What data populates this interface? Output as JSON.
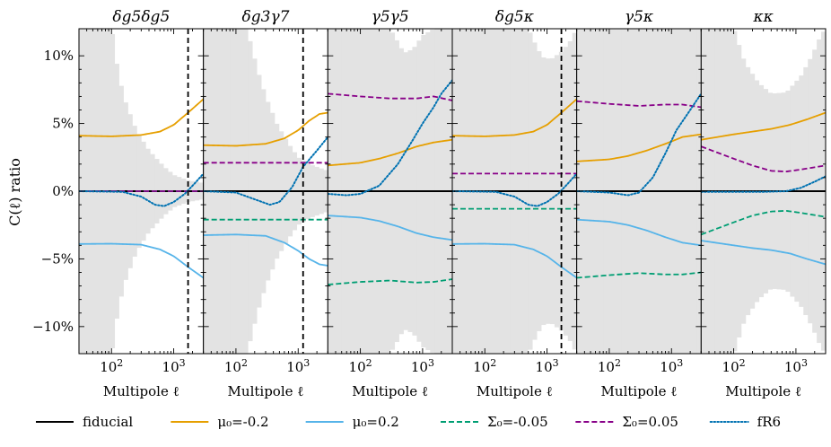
{
  "chart_data": {
    "type": "line",
    "ylabel": "C(ℓ) ratio",
    "xlabel": "Multipole ℓ",
    "xscale": "log",
    "xlim": [
      30,
      3000
    ],
    "ylim": [
      -12,
      12
    ],
    "yticks": [
      {
        "value": 10,
        "label": "10%"
      },
      {
        "value": 5,
        "label": "5%"
      },
      {
        "value": 0,
        "label": "0%"
      },
      {
        "value": -5,
        "label": "−5%"
      },
      {
        "value": -10,
        "label": "−10%"
      }
    ],
    "xticks": [
      {
        "value": 100,
        "base": "10",
        "exp": "2"
      },
      {
        "value": 1000,
        "base": "10",
        "exp": "3"
      }
    ],
    "legend": [
      {
        "key": "fiducial",
        "label": "fiducial",
        "color": "#000000",
        "dash": "solid"
      },
      {
        "key": "mu_neg",
        "label": "μ₀=-0.2",
        "color": "#E69F00",
        "dash": "solid"
      },
      {
        "key": "mu_pos",
        "label": "μ₀=0.2",
        "color": "#56B4E9",
        "dash": "solid"
      },
      {
        "key": "sig_neg",
        "label": "Σ₀=-0.05",
        "color": "#009E73",
        "dash": "dashed"
      },
      {
        "key": "sig_pos",
        "label": "Σ₀=0.05",
        "color": "#880088",
        "dash": "dashed"
      },
      {
        "key": "fr6",
        "label": "fR6",
        "color": "#0072B2",
        "dash": "dotted"
      }
    ],
    "panels": [
      {
        "title": "δg5δg5",
        "ell_cut": 1700,
        "error_band": [
          [
            30,
            12
          ],
          [
            100,
            12
          ],
          [
            130,
            8.5
          ],
          [
            170,
            6.5
          ],
          [
            250,
            4.5
          ],
          [
            400,
            3
          ],
          [
            700,
            1.8
          ],
          [
            1000,
            1.2
          ],
          [
            1700,
            0.8
          ],
          [
            3000,
            0.6
          ]
        ],
        "series": {
          "fiducial": [
            [
              30,
              0
            ],
            [
              3000,
              0
            ]
          ],
          "mu_neg": [
            [
              30,
              4.1
            ],
            [
              100,
              4.05
            ],
            [
              300,
              4.15
            ],
            [
              600,
              4.4
            ],
            [
              1000,
              4.9
            ],
            [
              1700,
              5.8
            ],
            [
              3000,
              6.8
            ]
          ],
          "mu_pos": [
            [
              30,
              -3.9
            ],
            [
              100,
              -3.88
            ],
            [
              300,
              -3.95
            ],
            [
              600,
              -4.3
            ],
            [
              1000,
              -4.8
            ],
            [
              1700,
              -5.6
            ],
            [
              3000,
              -6.4
            ]
          ],
          "sig_neg": [
            [
              30,
              0
            ],
            [
              3000,
              0
            ]
          ],
          "sig_pos": [
            [
              30,
              0
            ],
            [
              3000,
              0
            ]
          ],
          "fr6": [
            [
              30,
              0
            ],
            [
              150,
              -0.05
            ],
            [
              300,
              -0.4
            ],
            [
              500,
              -1
            ],
            [
              700,
              -1.1
            ],
            [
              1000,
              -0.8
            ],
            [
              1500,
              -0.2
            ],
            [
              2200,
              0.6
            ],
            [
              3000,
              1.3
            ]
          ]
        }
      },
      {
        "title": "δg3γ7",
        "ell_cut": 1200,
        "error_band": [
          [
            30,
            12
          ],
          [
            150,
            12
          ],
          [
            220,
            9
          ],
          [
            300,
            7
          ],
          [
            450,
            5
          ],
          [
            700,
            3.5
          ],
          [
            1000,
            2.5
          ],
          [
            1500,
            2
          ],
          [
            3000,
            1.5
          ]
        ],
        "series": {
          "fiducial": [
            [
              30,
              0
            ],
            [
              3000,
              0
            ]
          ],
          "mu_neg": [
            [
              30,
              3.4
            ],
            [
              100,
              3.35
            ],
            [
              300,
              3.5
            ],
            [
              600,
              3.9
            ],
            [
              1000,
              4.5
            ],
            [
              1500,
              5.2
            ],
            [
              2200,
              5.7
            ],
            [
              3000,
              5.8
            ]
          ],
          "mu_pos": [
            [
              30,
              -3.25
            ],
            [
              100,
              -3.2
            ],
            [
              300,
              -3.3
            ],
            [
              600,
              -3.8
            ],
            [
              1000,
              -4.4
            ],
            [
              1500,
              -5
            ],
            [
              2200,
              -5.4
            ],
            [
              3000,
              -5.5
            ]
          ],
          "sig_neg": [
            [
              30,
              -2.1
            ],
            [
              3000,
              -2.1
            ]
          ],
          "sig_pos": [
            [
              30,
              2.1
            ],
            [
              3000,
              2.1
            ]
          ],
          "fr6": [
            [
              30,
              0
            ],
            [
              100,
              -0.1
            ],
            [
              200,
              -0.6
            ],
            [
              350,
              -1
            ],
            [
              500,
              -0.8
            ],
            [
              800,
              0.3
            ],
            [
              1200,
              1.8
            ],
            [
              2000,
              3
            ],
            [
              3000,
              4
            ]
          ]
        }
      },
      {
        "title": "γ5γ5",
        "ell_cut": null,
        "error_band": [
          [
            30,
            12
          ],
          [
            300,
            12
          ],
          [
            400,
            11
          ],
          [
            500,
            10.2
          ],
          [
            700,
            10.5
          ],
          [
            1000,
            11.5
          ],
          [
            1500,
            12
          ],
          [
            3000,
            12
          ]
        ],
        "series": {
          "fiducial": [
            [
              30,
              0
            ],
            [
              3000,
              0
            ]
          ],
          "mu_neg": [
            [
              30,
              1.9
            ],
            [
              100,
              2.1
            ],
            [
              200,
              2.4
            ],
            [
              400,
              2.8
            ],
            [
              800,
              3.3
            ],
            [
              1500,
              3.6
            ],
            [
              3000,
              3.8
            ]
          ],
          "mu_pos": [
            [
              30,
              -1.8
            ],
            [
              100,
              -1.95
            ],
            [
              200,
              -2.2
            ],
            [
              400,
              -2.6
            ],
            [
              800,
              -3.1
            ],
            [
              1500,
              -3.4
            ],
            [
              3000,
              -3.6
            ]
          ],
          "sig_neg": [
            [
              30,
              -6.9
            ],
            [
              100,
              -6.7
            ],
            [
              300,
              -6.6
            ],
            [
              800,
              -6.75
            ],
            [
              1500,
              -6.7
            ],
            [
              3000,
              -6.5
            ]
          ],
          "sig_pos": [
            [
              30,
              7.2
            ],
            [
              100,
              7
            ],
            [
              300,
              6.85
            ],
            [
              800,
              6.85
            ],
            [
              1500,
              7
            ],
            [
              3000,
              6.7
            ]
          ],
          "fr6": [
            [
              30,
              -0.2
            ],
            [
              60,
              -0.3
            ],
            [
              100,
              -0.2
            ],
            [
              200,
              0.4
            ],
            [
              400,
              2
            ],
            [
              700,
              3.8
            ],
            [
              1000,
              5
            ],
            [
              1500,
              6.2
            ],
            [
              2000,
              7.2
            ],
            [
              3000,
              8.2
            ]
          ]
        }
      },
      {
        "title": "δg5κ",
        "ell_cut": 1700,
        "error_band": [
          [
            30,
            12
          ],
          [
            500,
            12
          ],
          [
            700,
            10.5
          ],
          [
            900,
            9.8
          ],
          [
            1200,
            9.8
          ],
          [
            1700,
            10.3
          ],
          [
            2300,
            11
          ],
          [
            3000,
            12
          ]
        ],
        "series": {
          "fiducial": [
            [
              30,
              0
            ],
            [
              3000,
              0
            ]
          ],
          "mu_neg": [
            [
              30,
              4.1
            ],
            [
              100,
              4.05
            ],
            [
              300,
              4.15
            ],
            [
              600,
              4.4
            ],
            [
              1000,
              4.9
            ],
            [
              1700,
              5.8
            ],
            [
              3000,
              6.8
            ]
          ],
          "mu_pos": [
            [
              30,
              -3.9
            ],
            [
              100,
              -3.88
            ],
            [
              300,
              -3.95
            ],
            [
              600,
              -4.3
            ],
            [
              1000,
              -4.8
            ],
            [
              1700,
              -5.6
            ],
            [
              3000,
              -6.4
            ]
          ],
          "sig_neg": [
            [
              30,
              -1.3
            ],
            [
              3000,
              -1.3
            ]
          ],
          "sig_pos": [
            [
              30,
              1.3
            ],
            [
              3000,
              1.3
            ]
          ],
          "fr6": [
            [
              30,
              0
            ],
            [
              150,
              -0.05
            ],
            [
              300,
              -0.4
            ],
            [
              500,
              -1
            ],
            [
              700,
              -1.1
            ],
            [
              1000,
              -0.8
            ],
            [
              1500,
              -0.2
            ],
            [
              2200,
              0.6
            ],
            [
              3000,
              1.3
            ]
          ]
        }
      },
      {
        "title": "γ5κ",
        "ell_cut": null,
        "error_band": [
          [
            30,
            12
          ],
          [
            3000,
            12
          ]
        ],
        "series": {
          "fiducial": [
            [
              30,
              0
            ],
            [
              3000,
              0
            ]
          ],
          "mu_neg": [
            [
              30,
              2.2
            ],
            [
              100,
              2.35
            ],
            [
              200,
              2.6
            ],
            [
              400,
              3
            ],
            [
              800,
              3.5
            ],
            [
              1500,
              4
            ],
            [
              3000,
              4.2
            ]
          ],
          "mu_pos": [
            [
              30,
              -2.1
            ],
            [
              100,
              -2.25
            ],
            [
              200,
              -2.5
            ],
            [
              400,
              -2.9
            ],
            [
              800,
              -3.4
            ],
            [
              1500,
              -3.8
            ],
            [
              3000,
              -4
            ]
          ],
          "sig_neg": [
            [
              30,
              -6.4
            ],
            [
              100,
              -6.2
            ],
            [
              300,
              -6.05
            ],
            [
              800,
              -6.15
            ],
            [
              1500,
              -6.15
            ],
            [
              3000,
              -6
            ]
          ],
          "sig_pos": [
            [
              30,
              6.65
            ],
            [
              100,
              6.45
            ],
            [
              300,
              6.3
            ],
            [
              800,
              6.4
            ],
            [
              1500,
              6.4
            ],
            [
              3000,
              6.2
            ]
          ],
          "fr6": [
            [
              30,
              0
            ],
            [
              100,
              -0.1
            ],
            [
              200,
              -0.3
            ],
            [
              300,
              -0.1
            ],
            [
              500,
              1
            ],
            [
              800,
              2.8
            ],
            [
              1200,
              4.5
            ],
            [
              2000,
              6
            ],
            [
              3000,
              7.2
            ]
          ]
        }
      },
      {
        "title": "κκ",
        "ell_cut": null,
        "error_band": [
          [
            30,
            12
          ],
          [
            100,
            12
          ],
          [
            150,
            9.5
          ],
          [
            250,
            8
          ],
          [
            400,
            7.2
          ],
          [
            700,
            7.3
          ],
          [
            1200,
            8.5
          ],
          [
            1800,
            10
          ],
          [
            2500,
            11.5
          ],
          [
            3000,
            12
          ]
        ],
        "series": {
          "fiducial": [
            [
              30,
              0
            ],
            [
              3000,
              0
            ]
          ],
          "mu_neg": [
            [
              30,
              3.8
            ],
            [
              100,
              4.2
            ],
            [
              200,
              4.4
            ],
            [
              400,
              4.6
            ],
            [
              800,
              4.9
            ],
            [
              1500,
              5.3
            ],
            [
              3000,
              5.8
            ]
          ],
          "mu_pos": [
            [
              30,
              -3.65
            ],
            [
              100,
              -4
            ],
            [
              200,
              -4.2
            ],
            [
              400,
              -4.35
            ],
            [
              800,
              -4.6
            ],
            [
              1500,
              -5
            ],
            [
              3000,
              -5.4
            ]
          ],
          "sig_neg": [
            [
              30,
              -3.2
            ],
            [
              100,
              -2.3
            ],
            [
              200,
              -1.8
            ],
            [
              400,
              -1.5
            ],
            [
              700,
              -1.45
            ],
            [
              1200,
              -1.6
            ],
            [
              3000,
              -1.9
            ]
          ],
          "sig_pos": [
            [
              30,
              3.3
            ],
            [
              100,
              2.4
            ],
            [
              200,
              1.9
            ],
            [
              400,
              1.5
            ],
            [
              700,
              1.45
            ],
            [
              1200,
              1.6
            ],
            [
              3000,
              1.9
            ]
          ],
          "fr6": [
            [
              30,
              -0.05
            ],
            [
              300,
              -0.05
            ],
            [
              700,
              0
            ],
            [
              1200,
              0.25
            ],
            [
              2000,
              0.7
            ],
            [
              3000,
              1.1
            ]
          ]
        }
      }
    ]
  }
}
